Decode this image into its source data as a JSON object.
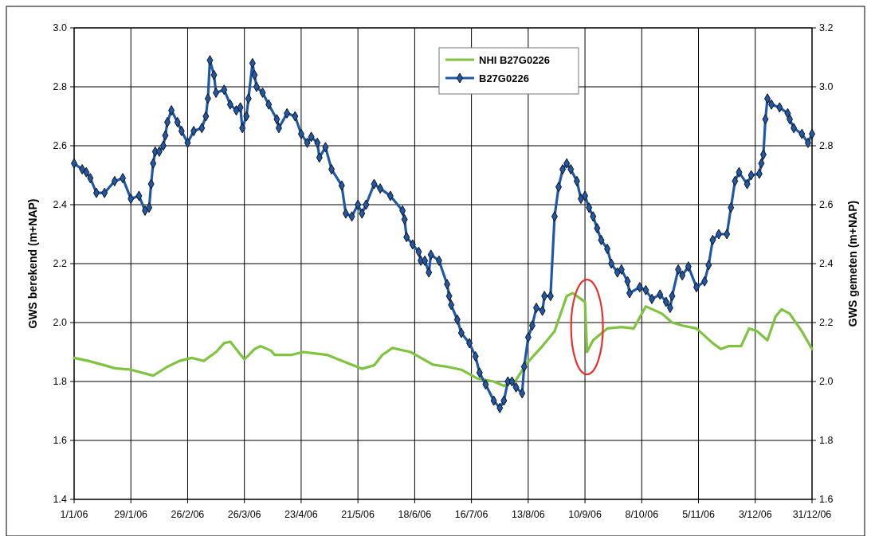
{
  "chart_data": {
    "type": "line",
    "xlabel": null,
    "ylabel": "GWS berekend (m+NAP)",
    "y2label": "GWS gemeten (m+NAP)",
    "xlim": [
      "2006-01-01",
      "2006-12-31"
    ],
    "xticks": [
      {
        "value": "2006-01-01",
        "label": "1/1/06"
      },
      {
        "value": "2006-01-29",
        "label": "29/1/06"
      },
      {
        "value": "2006-02-26",
        "label": "26/2/06"
      },
      {
        "value": "2006-03-26",
        "label": "26/3/06"
      },
      {
        "value": "2006-04-23",
        "label": "23/4/06"
      },
      {
        "value": "2006-05-21",
        "label": "21/5/06"
      },
      {
        "value": "2006-06-18",
        "label": "18/6/06"
      },
      {
        "value": "2006-07-16",
        "label": "16/7/06"
      },
      {
        "value": "2006-08-13",
        "label": "13/8/06"
      },
      {
        "value": "2006-09-10",
        "label": "10/9/06"
      },
      {
        "value": "2006-10-08",
        "label": "8/10/06"
      },
      {
        "value": "2006-11-05",
        "label": "5/11/06"
      },
      {
        "value": "2006-12-03",
        "label": "3/12/06"
      },
      {
        "value": "2006-12-31",
        "label": "31/12/06"
      }
    ],
    "ylim": [
      1.4,
      3.0
    ],
    "yticks": [
      {
        "value": 1.4,
        "label": "1.4"
      },
      1.6,
      1.8,
      {
        "value": 2.0,
        "label": "2.0"
      },
      2.2,
      2.4,
      2.6,
      2.8,
      {
        "value": 3.0,
        "label": "3.0"
      }
    ],
    "y2lim": [
      1.6,
      3.2
    ],
    "y2ticks": [
      1.6,
      1.8,
      {
        "value": 2.0,
        "label": "2.0"
      },
      2.2,
      2.4,
      2.6,
      2.8,
      {
        "value": 3.0,
        "label": "3.0"
      },
      3.2
    ],
    "grid": true,
    "legend": "top",
    "series": [
      {
        "name": "NHI B27G0226",
        "color": "#80c241",
        "marker": "none",
        "x": [
          "2006-01-01",
          "2006-01-08",
          "2006-01-16",
          "2006-01-21",
          "2006-01-29",
          "2006-02-09",
          "2006-02-16",
          "2006-02-22",
          "2006-02-28",
          "2006-03-03",
          "2006-03-06",
          "2006-03-10",
          "2006-03-12",
          "2006-03-16",
          "2006-03-19",
          "2006-03-26",
          "2006-03-31",
          "2006-04-03",
          "2006-04-08",
          "2006-04-10",
          "2006-04-18",
          "2006-04-24",
          "2006-04-30",
          "2006-05-06",
          "2006-05-13",
          "2006-05-23",
          "2006-05-29",
          "2006-06-02",
          "2006-06-07",
          "2006-06-16",
          "2006-06-27",
          "2006-07-04",
          "2006-07-11",
          "2006-07-19",
          "2006-07-27",
          "2006-08-01",
          "2006-08-07",
          "2006-08-12",
          "2006-08-20",
          "2006-08-26",
          "2006-09-01",
          "2006-09-04",
          "2006-09-10",
          "2006-09-11",
          "2006-09-14",
          "2006-09-21",
          "2006-09-28",
          "2006-10-04",
          "2006-10-10",
          "2006-10-18",
          "2006-10-23",
          "2006-10-28",
          "2006-11-04",
          "2006-11-12",
          "2006-11-16",
          "2006-11-20",
          "2006-11-26",
          "2006-11-30",
          "2006-12-04",
          "2006-12-09",
          "2006-12-13",
          "2006-12-16",
          "2006-12-20",
          "2006-12-26",
          "2006-12-31"
        ],
        "values": [
          1.88,
          1.87,
          1.855,
          1.845,
          1.84,
          1.82,
          1.85,
          1.87,
          1.88,
          1.875,
          1.87,
          1.89,
          1.9,
          1.93,
          1.935,
          1.875,
          1.91,
          1.92,
          1.905,
          1.89,
          1.89,
          1.9,
          1.895,
          1.89,
          1.87,
          1.843,
          1.855,
          1.89,
          1.914,
          1.9,
          1.857,
          1.85,
          1.84,
          1.81,
          1.8,
          1.785,
          1.805,
          1.86,
          1.92,
          1.97,
          2.09,
          2.1,
          2.07,
          1.9,
          1.94,
          1.98,
          1.985,
          1.98,
          2.055,
          2.03,
          2.0,
          1.99,
          1.98,
          1.93,
          1.91,
          1.92,
          1.92,
          1.98,
          1.97,
          1.94,
          2.02,
          2.045,
          2.03,
          1.97,
          1.91
        ]
      },
      {
        "name": "B27G0226",
        "color": "#1f58a6",
        "marker": "diamond",
        "axis": "y2",
        "x": [
          "2006-01-01",
          "2006-01-05",
          "2006-01-07",
          "2006-01-09",
          "2006-01-12",
          "2006-01-16",
          "2006-01-21",
          "2006-01-25",
          "2006-01-29",
          "2006-02-02",
          "2006-02-05",
          "2006-02-07",
          "2006-02-08",
          "2006-02-09",
          "2006-02-10",
          "2006-02-12",
          "2006-02-14",
          "2006-02-15",
          "2006-02-16",
          "2006-02-18",
          "2006-02-21",
          "2006-02-23",
          "2006-02-26",
          "2006-03-01",
          "2006-03-05",
          "2006-03-07",
          "2006-03-08",
          "2006-03-09",
          "2006-03-11",
          "2006-03-12",
          "2006-03-16",
          "2006-03-19",
          "2006-03-22",
          "2006-03-24",
          "2006-03-25",
          "2006-03-27",
          "2006-03-28",
          "2006-03-30",
          "2006-03-31",
          "2006-04-01",
          "2006-04-04",
          "2006-04-07",
          "2006-04-11",
          "2006-04-12",
          "2006-04-16",
          "2006-04-20",
          "2006-04-23",
          "2006-04-26",
          "2006-04-28",
          "2006-05-01",
          "2006-05-02",
          "2006-05-05",
          "2006-05-08",
          "2006-05-13",
          "2006-05-15",
          "2006-05-18",
          "2006-05-21",
          "2006-05-23",
          "2006-05-25",
          "2006-05-29",
          "2006-06-01",
          "2006-06-06",
          "2006-06-12",
          "2006-06-13",
          "2006-06-14",
          "2006-06-17",
          "2006-06-20",
          "2006-06-21",
          "2006-06-23",
          "2006-06-25",
          "2006-06-26",
          "2006-06-30",
          "2006-07-04",
          "2006-07-05",
          "2006-07-06",
          "2006-07-09",
          "2006-07-11",
          "2006-07-15",
          "2006-07-18",
          "2006-07-20",
          "2006-07-23",
          "2006-07-27",
          "2006-07-30",
          "2006-08-01",
          "2006-08-03",
          "2006-08-05",
          "2006-08-07",
          "2006-08-10",
          "2006-08-11",
          "2006-08-13",
          "2006-08-15",
          "2006-08-17",
          "2006-08-20",
          "2006-08-21",
          "2006-08-24",
          "2006-08-26",
          "2006-08-28",
          "2006-08-30",
          "2006-09-01",
          "2006-09-03",
          "2006-09-06",
          "2006-09-08",
          "2006-09-10",
          "2006-09-12",
          "2006-09-14",
          "2006-09-16",
          "2006-09-18",
          "2006-09-21",
          "2006-09-23",
          "2006-09-26",
          "2006-09-28",
          "2006-10-01",
          "2006-10-02",
          "2006-10-07",
          "2006-10-10",
          "2006-10-13",
          "2006-10-17",
          "2006-10-20",
          "2006-10-22",
          "2006-10-23",
          "2006-10-26",
          "2006-10-28",
          "2006-10-31",
          "2006-11-04",
          "2006-11-08",
          "2006-11-10",
          "2006-11-12",
          "2006-11-15",
          "2006-11-19",
          "2006-11-21",
          "2006-11-23",
          "2006-11-25",
          "2006-11-29",
          "2006-12-01",
          "2006-12-05",
          "2006-12-06",
          "2006-12-07",
          "2006-12-08",
          "2006-12-09",
          "2006-12-11",
          "2006-12-15",
          "2006-12-19",
          "2006-12-20",
          "2006-12-22",
          "2006-12-26",
          "2006-12-29",
          "2006-12-31"
        ],
        "values": [
          2.74,
          2.72,
          2.71,
          2.69,
          2.64,
          2.64,
          2.68,
          2.69,
          2.62,
          2.63,
          2.58,
          2.59,
          2.67,
          2.74,
          2.78,
          2.78,
          2.8,
          2.835,
          2.88,
          2.92,
          2.88,
          2.85,
          2.81,
          2.85,
          2.86,
          2.9,
          2.96,
          3.09,
          3.04,
          2.98,
          2.99,
          2.94,
          2.92,
          2.93,
          2.86,
          2.9,
          2.96,
          3.08,
          3.04,
          3.0,
          2.98,
          2.94,
          2.89,
          2.86,
          2.91,
          2.9,
          2.84,
          2.81,
          2.83,
          2.81,
          2.76,
          2.795,
          2.72,
          2.665,
          2.57,
          2.56,
          2.6,
          2.57,
          2.6,
          2.67,
          2.655,
          2.63,
          2.58,
          2.55,
          2.49,
          2.465,
          2.44,
          2.41,
          2.41,
          2.37,
          2.43,
          2.41,
          2.33,
          2.29,
          2.26,
          2.21,
          2.165,
          2.13,
          2.085,
          2.03,
          1.99,
          1.935,
          1.91,
          1.935,
          2.0,
          2.0,
          1.98,
          1.96,
          2.05,
          2.15,
          2.19,
          2.25,
          2.24,
          2.29,
          2.29,
          2.56,
          2.66,
          2.72,
          2.74,
          2.72,
          2.68,
          2.62,
          2.63,
          2.59,
          2.56,
          2.52,
          2.48,
          2.45,
          2.4,
          2.37,
          2.38,
          2.34,
          2.3,
          2.32,
          2.31,
          2.28,
          2.295,
          2.27,
          2.25,
          2.29,
          2.38,
          2.36,
          2.39,
          2.32,
          2.34,
          2.395,
          2.48,
          2.5,
          2.5,
          2.59,
          2.68,
          2.71,
          2.67,
          2.7,
          2.705,
          2.74,
          2.77,
          2.89,
          2.96,
          2.94,
          2.93,
          2.91,
          2.89,
          2.86,
          2.84,
          2.81,
          2.84
        ]
      }
    ]
  }
}
